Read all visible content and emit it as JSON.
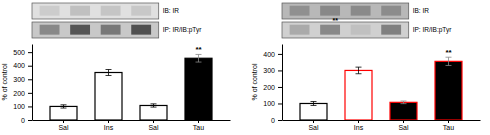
{
  "chart_data": [
    {
      "type": "bar",
      "categories": [
        "Sal",
        "Ins",
        "Sal",
        "Tau"
      ],
      "values": [
        100,
        350,
        107,
        455
      ],
      "errors": [
        12,
        22,
        12,
        28
      ],
      "colors": [
        "white",
        "white",
        "white",
        "black"
      ],
      "edge_colors": [
        "black",
        "black",
        "black",
        "black"
      ],
      "ylim": [
        0,
        560
      ],
      "yticks": [
        0,
        100,
        200,
        300,
        400,
        500
      ],
      "ylabel": "% of control",
      "annotations": [
        {
          "text": "**",
          "index": 3
        }
      ],
      "blot": {
        "rows": [
          {
            "label": "IB: IR",
            "color": "#e0e0e0",
            "colors": [
              "#cccccc",
              "#c0c0c0",
              "#c5c5c5",
              "#c8c8c8"
            ]
          },
          {
            "label": "IP: IR/IB:pTyr",
            "color": "#c8c8c8",
            "colors": [
              "#888888",
              "#555555",
              "#787878",
              "#505050"
            ]
          }
        ]
      }
    },
    {
      "type": "bar",
      "categories": [
        "Sal",
        "Ins",
        "Sal",
        "Tau"
      ],
      "values": [
        100,
        300,
        107,
        355
      ],
      "errors": [
        12,
        20,
        8,
        25
      ],
      "colors": [
        "white",
        "white",
        "black",
        "black"
      ],
      "edge_colors": [
        "black",
        "red",
        "red",
        "red"
      ],
      "ylim": [
        0,
        460
      ],
      "yticks": [
        0,
        100,
        200,
        300,
        400
      ],
      "ylabel": "% of control",
      "annotations": [
        {
          "text": "**",
          "index": 3
        }
      ],
      "blot": {
        "rows": [
          {
            "label": "IB: IR",
            "color": "#b8b8b8",
            "colors": [
              "#909090",
              "#888888",
              "#8a8a8a",
              "#8c8c8c"
            ]
          },
          {
            "label": "IP: IR/IB:pTyr",
            "color": "#d0d0d0",
            "colors": [
              "#aaaaaa",
              "#888888",
              "#c0c0c0",
              "#808080"
            ]
          }
        ],
        "annotation": "**"
      }
    }
  ]
}
